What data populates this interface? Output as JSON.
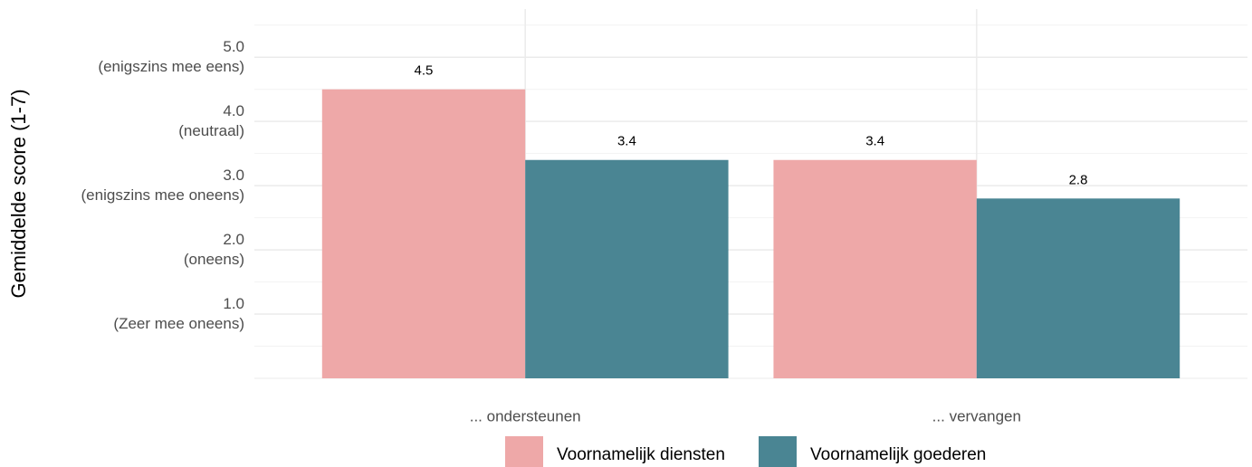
{
  "chart_data": {
    "type": "bar",
    "y_label": "Gemiddelde score (1-7)",
    "categories": [
      "... ondersteunen",
      "... vervangen"
    ],
    "series": [
      {
        "name": "Voornamelijk diensten",
        "color": "#eea8a8",
        "values": [
          4.5,
          3.4
        ]
      },
      {
        "name": "Voornamelijk goederen",
        "color": "#4a8593",
        "values": [
          3.4,
          2.8
        ]
      }
    ],
    "ylim": [
      0,
      5.75
    ],
    "yticks": [
      {
        "value": 1,
        "label": "1.0\n(Zeer mee oneens)"
      },
      {
        "value": 2,
        "label": "2.0\n(oneens)"
      },
      {
        "value": 3,
        "label": "3.0\n(enigszins mee oneens)"
      },
      {
        "value": 4,
        "label": "4.0\n(neutraal)"
      },
      {
        "value": 5,
        "label": "5.0\n(enigszins mee eens)"
      }
    ],
    "grid": true,
    "legend": "bottom"
  }
}
